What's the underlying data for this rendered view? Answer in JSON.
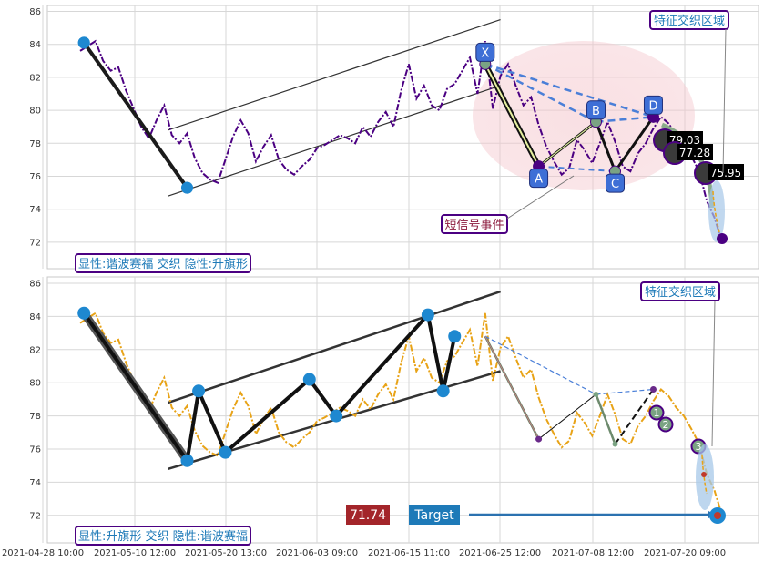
{
  "chart_data": [
    {
      "type": "line",
      "panel": "top",
      "ylim": [
        71,
        86.3
      ],
      "yticks": [
        72,
        74,
        76,
        78,
        80,
        82,
        84,
        86
      ],
      "grid": true,
      "series": [
        {
          "style": "purple dash-dot",
          "color": "#4B0082",
          "x": [
            0,
            2,
            4,
            6,
            8,
            10,
            12,
            14,
            16,
            18,
            20,
            22,
            24,
            26,
            28,
            30,
            32,
            34,
            36,
            38,
            40,
            42,
            44,
            46,
            48,
            50,
            52,
            54,
            56,
            58,
            60,
            62,
            64,
            66,
            68,
            70,
            72,
            74,
            76,
            78,
            80,
            82,
            84,
            86,
            88,
            90,
            92,
            94,
            96,
            98,
            100,
            102,
            104,
            106,
            108,
            110,
            112,
            114,
            116,
            118,
            120,
            122,
            124,
            126,
            128,
            130,
            132,
            134,
            136,
            138,
            140,
            142,
            144,
            146,
            148,
            150,
            152,
            154,
            156,
            158,
            160,
            162,
            164,
            166,
            168
          ],
          "y": [
            83.6,
            83.9,
            84.2,
            83.0,
            82.4,
            82.6,
            81.2,
            80.1,
            79.0,
            78.3,
            79.4,
            80.3,
            78.5,
            78.0,
            78.6,
            77.1,
            76.2,
            75.8,
            75.6,
            77.0,
            78.4,
            79.4,
            78.6,
            76.9,
            77.8,
            78.5,
            77.0,
            76.4,
            76.1,
            76.6,
            77.0,
            77.7,
            77.9,
            78.2,
            78.5,
            78.3,
            78.0,
            79.0,
            78.4,
            79.3,
            79.9,
            79.0,
            81.2,
            82.8,
            80.7,
            81.5,
            80.3,
            80.0,
            81.3,
            81.6,
            82.4,
            83.2,
            81.0,
            84.2,
            80.1,
            82.1,
            82.8,
            81.5,
            80.3,
            80.8,
            79.1,
            77.8,
            76.9,
            76.1,
            76.5,
            78.2,
            77.6,
            76.8,
            78.0,
            79.3,
            78.1,
            76.6,
            76.3,
            77.4,
            78.0,
            78.9,
            79.6,
            79.2,
            78.5,
            78.0,
            77.2,
            76.3,
            74.5,
            73.5,
            72.0
          ]
        }
      ],
      "points": {
        "X": 82.8,
        "A": 76.6,
        "B": 79.3,
        "C": 76.3,
        "D": 79.6
      },
      "pivots": [
        [
          1,
          84.1
        ],
        [
          28,
          75.3
        ]
      ],
      "channel": [
        [
          23,
          78.8,
          110,
          85.5
        ],
        [
          23,
          74.8,
          110,
          81.5
        ]
      ],
      "price_labels": [
        "79.03",
        "77.28",
        "75.95"
      ],
      "annotations": [
        "特征交织区域",
        "短信号事件"
      ],
      "legend_box": "显性:谐波赛福 交织 隐性:升旗形"
    },
    {
      "type": "line",
      "panel": "bottom",
      "ylim": [
        70.7,
        86.5
      ],
      "yticks": [
        72,
        74,
        76,
        78,
        80,
        82,
        84,
        86
      ],
      "xticks": [
        "2021-04-28 10:00",
        "2021-05-10 12:00",
        "2021-05-20 13:00",
        "2021-06-03 09:00",
        "2021-06-15 11:00",
        "2021-06-25 12:00",
        "2021-07-08 12:00",
        "2021-07-20 09:00"
      ],
      "grid": true,
      "series": [
        {
          "style": "orange dash-dot",
          "color": "#E8A317",
          "x": [
            0,
            2,
            4,
            6,
            8,
            10,
            12,
            14,
            16,
            18,
            20,
            22,
            24,
            26,
            28,
            30,
            32,
            34,
            36,
            38,
            40,
            42,
            44,
            46,
            48,
            50,
            52,
            54,
            56,
            58,
            60,
            62,
            64,
            66,
            68,
            70,
            72,
            74,
            76,
            78,
            80,
            82,
            84,
            86,
            88,
            90,
            92,
            94,
            96,
            98,
            100,
            102,
            104,
            106,
            108,
            110,
            112,
            114,
            116,
            118,
            120,
            122,
            124,
            126,
            128,
            130,
            132,
            134,
            136,
            138,
            140,
            142,
            144,
            146,
            148,
            150,
            152,
            154,
            156,
            158,
            160,
            162,
            164,
            166,
            168
          ],
          "y": [
            83.6,
            83.9,
            84.2,
            83.0,
            82.4,
            82.6,
            81.2,
            80.1,
            79.0,
            78.3,
            79.4,
            80.3,
            78.5,
            78.0,
            78.6,
            77.1,
            76.2,
            75.8,
            75.6,
            77.0,
            78.4,
            79.4,
            78.6,
            76.9,
            77.8,
            78.5,
            77.0,
            76.4,
            76.1,
            76.6,
            77.0,
            77.7,
            77.9,
            78.2,
            78.5,
            78.3,
            78.0,
            79.0,
            78.4,
            79.3,
            79.9,
            79.0,
            81.2,
            82.8,
            80.7,
            81.5,
            80.3,
            80.0,
            81.3,
            81.6,
            82.4,
            83.2,
            81.0,
            84.2,
            80.1,
            82.1,
            82.8,
            81.5,
            80.3,
            80.8,
            79.1,
            77.8,
            76.9,
            76.1,
            76.5,
            78.2,
            77.6,
            76.8,
            78.0,
            79.3,
            78.1,
            76.6,
            76.3,
            77.4,
            78.0,
            78.9,
            79.6,
            79.2,
            78.5,
            78.0,
            77.2,
            76.3,
            74.5,
            73.5,
            72.0
          ]
        }
      ],
      "pivots": [
        [
          1,
          84.2
        ],
        [
          28,
          75.3
        ],
        [
          31,
          79.5
        ],
        [
          38,
          75.8
        ],
        [
          60,
          80.2
        ],
        [
          67,
          78.0
        ],
        [
          91,
          84.1
        ],
        [
          95,
          79.5
        ],
        [
          98,
          82.8
        ]
      ],
      "labels": [
        "1",
        "2",
        "3"
      ],
      "price_box": "71.74",
      "target_box": "Target",
      "annotations": [
        "特征交织区域"
      ],
      "legend_box": "显性:升旗形 交织 隐性:谐波赛福"
    }
  ]
}
